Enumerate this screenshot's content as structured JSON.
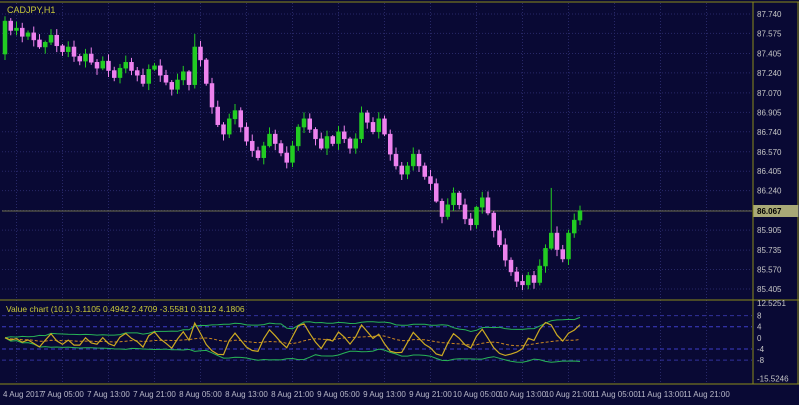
{
  "main_chart": {
    "symbol_label": "CADJPY,H1"
  },
  "indicator_pane": {
    "label": "Value chart (10.1) 3.1105 0.4942 2.4709 -3.5581 0.3112 4.1806"
  },
  "colors": {
    "background": "#090934",
    "grid": "#282868",
    "frame": "#8b8b1a",
    "candle_up": "#22cc22",
    "candle_down": "#ee82ee",
    "axis_text": "#c6c6c6",
    "time_text": "#b8b8c8",
    "symbol_text": "#c9c93a",
    "current_price_line": "#8f8f50",
    "badge_bg": "#a9a977",
    "vc_line": "#ccaa22",
    "vc_mid": "#cc8822",
    "vc_band": "#28b457",
    "level_4": "#3d3dc8",
    "level_8": "#32329a"
  },
  "chart_data": {
    "type": "candlestick",
    "symbol": "CADJPY",
    "timeframe": "H1",
    "title": "CADJPY,H1",
    "ylim": [
      85.405,
      87.74
    ],
    "first_open": 87.4,
    "closes": [
      87.68,
      87.6,
      87.62,
      87.55,
      87.58,
      87.52,
      87.46,
      87.5,
      87.56,
      87.47,
      87.42,
      87.46,
      87.38,
      87.34,
      87.4,
      87.33,
      87.28,
      87.34,
      87.26,
      87.2,
      87.28,
      87.33,
      87.26,
      87.22,
      87.15,
      87.27,
      87.3,
      87.22,
      87.16,
      87.1,
      87.18,
      87.25,
      87.14,
      87.46,
      87.35,
      87.15,
      86.95,
      86.8,
      86.72,
      86.85,
      86.92,
      86.78,
      86.66,
      86.58,
      86.52,
      86.62,
      86.72,
      86.64,
      86.56,
      86.48,
      86.62,
      86.78,
      86.85,
      86.76,
      86.68,
      86.6,
      86.7,
      86.64,
      86.74,
      86.68,
      86.6,
      86.68,
      86.9,
      86.82,
      86.74,
      86.85,
      86.72,
      86.55,
      86.45,
      86.38,
      86.45,
      86.55,
      86.45,
      86.36,
      86.3,
      86.15,
      86.02,
      86.12,
      86.22,
      86.12,
      86.0,
      85.95,
      86.1,
      86.18,
      86.05,
      85.9,
      85.78,
      85.65,
      85.55,
      85.47,
      85.44,
      85.52,
      85.46,
      85.6,
      85.75,
      85.88,
      85.74,
      85.66,
      85.88,
      85.99,
      86.07
    ],
    "wick_high_overrides": {
      "33": 0.06,
      "95": 0.35
    },
    "current_price": "86.067",
    "price_ticks": [
      "87.740",
      "87.575",
      "87.405",
      "87.240",
      "87.070",
      "86.905",
      "86.740",
      "86.570",
      "86.405",
      "86.240",
      "86.070",
      "85.905",
      "85.735",
      "85.570",
      "85.405"
    ],
    "time_ticks": [
      {
        "label": "4 Aug 2017",
        "slot": 2
      },
      {
        "label": "7 Aug 05:00",
        "slot": 10
      },
      {
        "label": "7 Aug 13:00",
        "slot": 18
      },
      {
        "label": "7 Aug 21:00",
        "slot": 26
      },
      {
        "label": "8 Aug 05:00",
        "slot": 34
      },
      {
        "label": "8 Aug 13:00",
        "slot": 42
      },
      {
        "label": "8 Aug 21:00",
        "slot": 50
      },
      {
        "label": "9 Aug 05:00",
        "slot": 58
      },
      {
        "label": "9 Aug 13:00",
        "slot": 66
      },
      {
        "label": "9 Aug 21:00",
        "slot": 74
      },
      {
        "label": "10 Aug 05:00",
        "slot": 82
      },
      {
        "label": "10 Aug 13:00",
        "slot": 90
      },
      {
        "label": "10 Aug 21:00",
        "slot": 98
      },
      {
        "label": "11 Aug 05:00",
        "slot": 106
      },
      {
        "label": "11 Aug 13:00",
        "slot": 114
      },
      {
        "label": "11 Aug 21:00",
        "slot": 122
      }
    ],
    "indicator": {
      "name": "Value chart (10.1)",
      "values": [
        3.1105,
        0.4942,
        2.4709,
        -3.5581,
        0.3112,
        4.1806
      ],
      "max": 12.5251,
      "min": -15.5246,
      "axis_ticks": [
        "12.5251",
        "8",
        "4",
        "0",
        "-4",
        "-8",
        "-15.5246"
      ],
      "levels": [
        4,
        -4,
        8,
        -8
      ]
    }
  }
}
